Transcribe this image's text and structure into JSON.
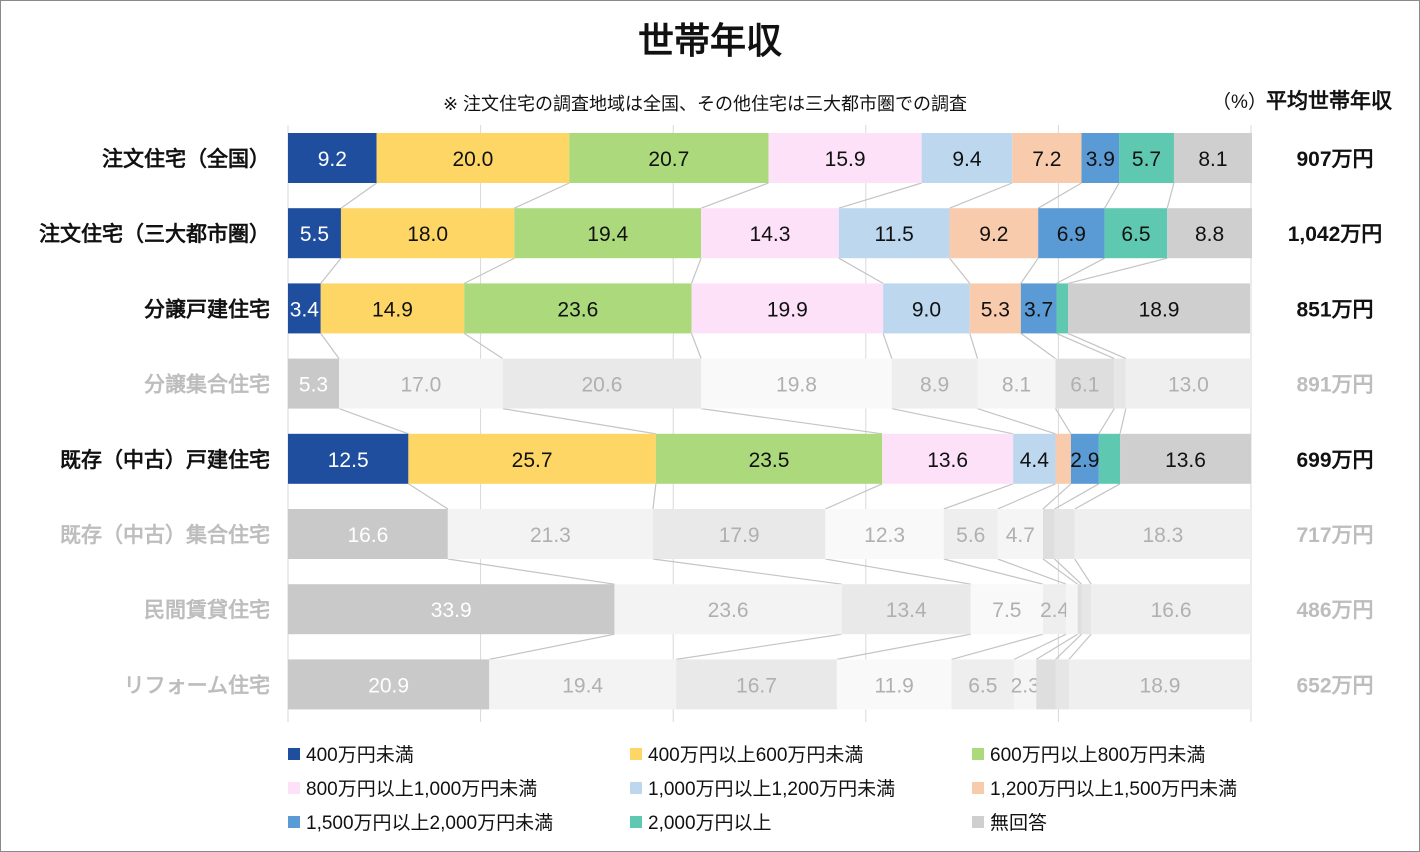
{
  "chart_data": {
    "type": "bar",
    "orientation": "horizontal-stacked-100",
    "title": "世帯年収",
    "note": "※ 注文住宅の調査地域は全国、その他住宅は三大都市圏での調査",
    "unit_label": "（%）",
    "avg_header": "平均世帯年収",
    "xlim": [
      0,
      100
    ],
    "grid": true,
    "legend_position": "bottom",
    "series": [
      {
        "name": "400万円未満",
        "color": "#1f4e9f",
        "faded": "#c9c9c9"
      },
      {
        "name": "400万円以上600万円未満",
        "color": "#fdd666",
        "faded": "#f3f3f3"
      },
      {
        "name": "600万円以上800万円未満",
        "color": "#acd97b",
        "faded": "#e9e9e9"
      },
      {
        "name": "800万円以上1,000万円未満",
        "color": "#fce1f8",
        "faded": "#f9f9f9"
      },
      {
        "name": "1,000万円以上1,200万円未満",
        "color": "#bdd7ee",
        "faded": "#eeeeee"
      },
      {
        "name": "1,200万円以上1,500万円未満",
        "color": "#f8cbad",
        "faded": "#f5f5f5"
      },
      {
        "name": "1,500万円以上2,000万円未満",
        "color": "#5b9bd5",
        "faded": "#dedede"
      },
      {
        "name": "2,000万円以上",
        "color": "#5ec8b0",
        "faded": "#e6e6e6"
      },
      {
        "name": "無回答",
        "color": "#cfcfcf",
        "faded": "#efefef"
      }
    ],
    "categories": [
      {
        "label": "注文住宅（全国）",
        "highlight": true,
        "values": [
          9.2,
          20.0,
          20.7,
          15.9,
          9.4,
          7.2,
          3.9,
          5.7,
          8.1
        ],
        "avg": "907万円"
      },
      {
        "label": "注文住宅（三大都市圏）",
        "highlight": true,
        "values": [
          5.5,
          18.0,
          19.4,
          14.3,
          11.5,
          9.2,
          6.9,
          6.5,
          8.8
        ],
        "avg": "1,042万円"
      },
      {
        "label": "分譲戸建住宅",
        "highlight": true,
        "values": [
          3.4,
          14.9,
          23.6,
          19.9,
          9.0,
          5.3,
          3.7,
          1.2,
          18.9
        ],
        "avg": "851万円"
      },
      {
        "label": "分譲集合住宅",
        "highlight": false,
        "values": [
          5.3,
          17.0,
          20.6,
          19.8,
          8.9,
          8.1,
          6.1,
          1.2,
          13.0
        ],
        "avg": "891万円"
      },
      {
        "label": "既存（中古）戸建住宅",
        "highlight": true,
        "values": [
          12.5,
          25.7,
          23.5,
          13.6,
          4.4,
          1.6,
          2.9,
          2.2,
          13.6
        ],
        "avg": "699万円"
      },
      {
        "label": "既存（中古）集合住宅",
        "highlight": false,
        "values": [
          16.6,
          21.3,
          17.9,
          12.3,
          5.6,
          4.7,
          1.2,
          2.1,
          18.3
        ],
        "avg": "717万円"
      },
      {
        "label": "民間賃貸住宅",
        "highlight": false,
        "values": [
          33.9,
          23.6,
          13.4,
          7.5,
          2.4,
          1.2,
          0.4,
          1.0,
          16.6
        ],
        "avg": "486万円"
      },
      {
        "label": "リフォーム住宅",
        "highlight": false,
        "values": [
          20.9,
          19.4,
          16.7,
          11.9,
          6.5,
          2.3,
          2.0,
          1.4,
          18.9
        ],
        "avg": "652万円"
      }
    ]
  }
}
